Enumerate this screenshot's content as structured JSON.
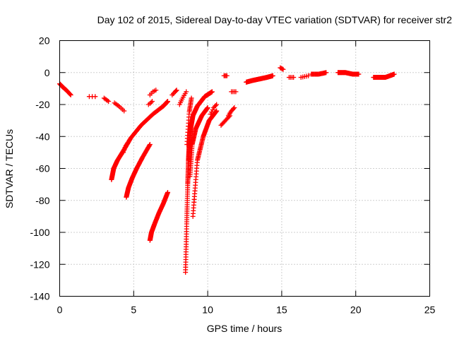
{
  "chart_data": {
    "type": "scatter",
    "title": "Day 102 of 2015, Sidereal Day-to-day VTEC variation (SDTVAR) for receiver str2",
    "xlabel": "GPS time / hours",
    "ylabel": "SDTVAR / TECUs",
    "xlim": [
      0,
      25
    ],
    "ylim": [
      -140,
      20
    ],
    "xticks": [
      0,
      5,
      10,
      15,
      20,
      25
    ],
    "yticks": [
      20,
      0,
      -20,
      -40,
      -60,
      -80,
      -100,
      -120,
      -140
    ],
    "grid": true,
    "marker": "+",
    "color": "#ff0000",
    "segments": [
      {
        "x": [
          0.0,
          0.2,
          0.45,
          0.75
        ],
        "y": [
          -7,
          -9,
          -11,
          -14
        ],
        "n": 22
      },
      {
        "x": [
          2.0,
          2.4
        ],
        "y": [
          -15,
          -15
        ],
        "n": 3
      },
      {
        "x": [
          3.0,
          3.3
        ],
        "y": [
          -16,
          -18
        ],
        "n": 5
      },
      {
        "x": [
          3.7,
          4.0,
          4.35
        ],
        "y": [
          -19,
          -21,
          -24
        ],
        "n": 8
      },
      {
        "x": [
          3.5,
          3.65,
          3.9,
          4.3,
          4.8,
          5.5,
          6.3,
          7.0,
          7.3
        ],
        "y": [
          -67,
          -60,
          -55,
          -49,
          -41,
          -33,
          -26,
          -21,
          -18
        ],
        "n": 120
      },
      {
        "x": [
          4.3,
          4.45,
          4.6
        ],
        "y": [
          -50,
          -46,
          -44
        ],
        "n": 6
      },
      {
        "x": [
          4.5,
          4.65,
          4.9,
          5.2,
          5.6,
          6.1
        ],
        "y": [
          -78,
          -72,
          -66,
          -60,
          -53,
          -45
        ],
        "n": 70
      },
      {
        "x": [
          6.0,
          6.15,
          6.25
        ],
        "y": [
          -20,
          -19,
          -18
        ],
        "n": 4
      },
      {
        "x": [
          6.1,
          6.3,
          6.5
        ],
        "y": [
          -14,
          -12,
          -11
        ],
        "n": 5
      },
      {
        "x": [
          6.1,
          6.2,
          6.4,
          6.7,
          7.0,
          7.3
        ],
        "y": [
          -105,
          -100,
          -95,
          -88,
          -82,
          -75
        ],
        "n": 70
      },
      {
        "x": [
          7.6,
          7.8,
          7.9
        ],
        "y": [
          -14,
          -12,
          -11
        ],
        "n": 6
      },
      {
        "x": [
          8.1,
          8.3,
          8.55
        ],
        "y": [
          -20,
          -16,
          -12
        ],
        "n": 8
      },
      {
        "x": [
          8.5,
          8.58,
          8.65,
          8.7,
          8.75,
          8.85,
          9.0,
          9.3,
          9.8,
          10.3
        ],
        "y": [
          -125,
          -95,
          -70,
          -55,
          -45,
          -35,
          -27,
          -21,
          -15,
          -12
        ],
        "n": 170
      },
      {
        "x": [
          8.6,
          8.75,
          8.9
        ],
        "y": [
          -45,
          -25,
          -16
        ],
        "n": 22
      },
      {
        "x": [
          8.8,
          8.95,
          9.2,
          9.6,
          10.0
        ],
        "y": [
          -65,
          -45,
          -35,
          -27,
          -22
        ],
        "n": 70
      },
      {
        "x": [
          9.0,
          9.3,
          9.7,
          10.1,
          10.6
        ],
        "y": [
          -90,
          -55,
          -40,
          -30,
          -24
        ],
        "n": 80
      },
      {
        "x": [
          10.2,
          10.4,
          10.6
        ],
        "y": [
          -26,
          -22,
          -20
        ],
        "n": 7
      },
      {
        "x": [
          10.9,
          11.2,
          11.5
        ],
        "y": [
          -33,
          -30,
          -27
        ],
        "n": 10
      },
      {
        "x": [
          11.4,
          11.6,
          11.8
        ],
        "y": [
          -27,
          -24,
          -22
        ],
        "n": 8
      },
      {
        "x": [
          11.1,
          11.3
        ],
        "y": [
          -2,
          -2
        ],
        "n": 4
      },
      {
        "x": [
          11.6,
          11.9
        ],
        "y": [
          -12,
          -12
        ],
        "n": 4
      },
      {
        "x": [
          12.6,
          13.0,
          13.5,
          14.0,
          14.4
        ],
        "y": [
          -6,
          -5,
          -4,
          -3,
          -2
        ],
        "n": 60
      },
      {
        "x": [
          14.9,
          15.1
        ],
        "y": [
          3,
          2
        ],
        "n": 4
      },
      {
        "x": [
          15.5,
          15.8
        ],
        "y": [
          -3,
          -3
        ],
        "n": 4
      },
      {
        "x": [
          16.3,
          16.8
        ],
        "y": [
          -3,
          -2
        ],
        "n": 5
      },
      {
        "x": [
          17.0,
          17.5,
          18.0
        ],
        "y": [
          -1,
          -1,
          0
        ],
        "n": 20
      },
      {
        "x": [
          18.8,
          19.3,
          19.8,
          20.2
        ],
        "y": [
          0,
          0,
          -1,
          -1
        ],
        "n": 40
      },
      {
        "x": [
          21.2,
          21.6,
          22.0,
          22.3,
          22.6
        ],
        "y": [
          -3,
          -3,
          -3,
          -2,
          -1
        ],
        "n": 35
      }
    ]
  }
}
